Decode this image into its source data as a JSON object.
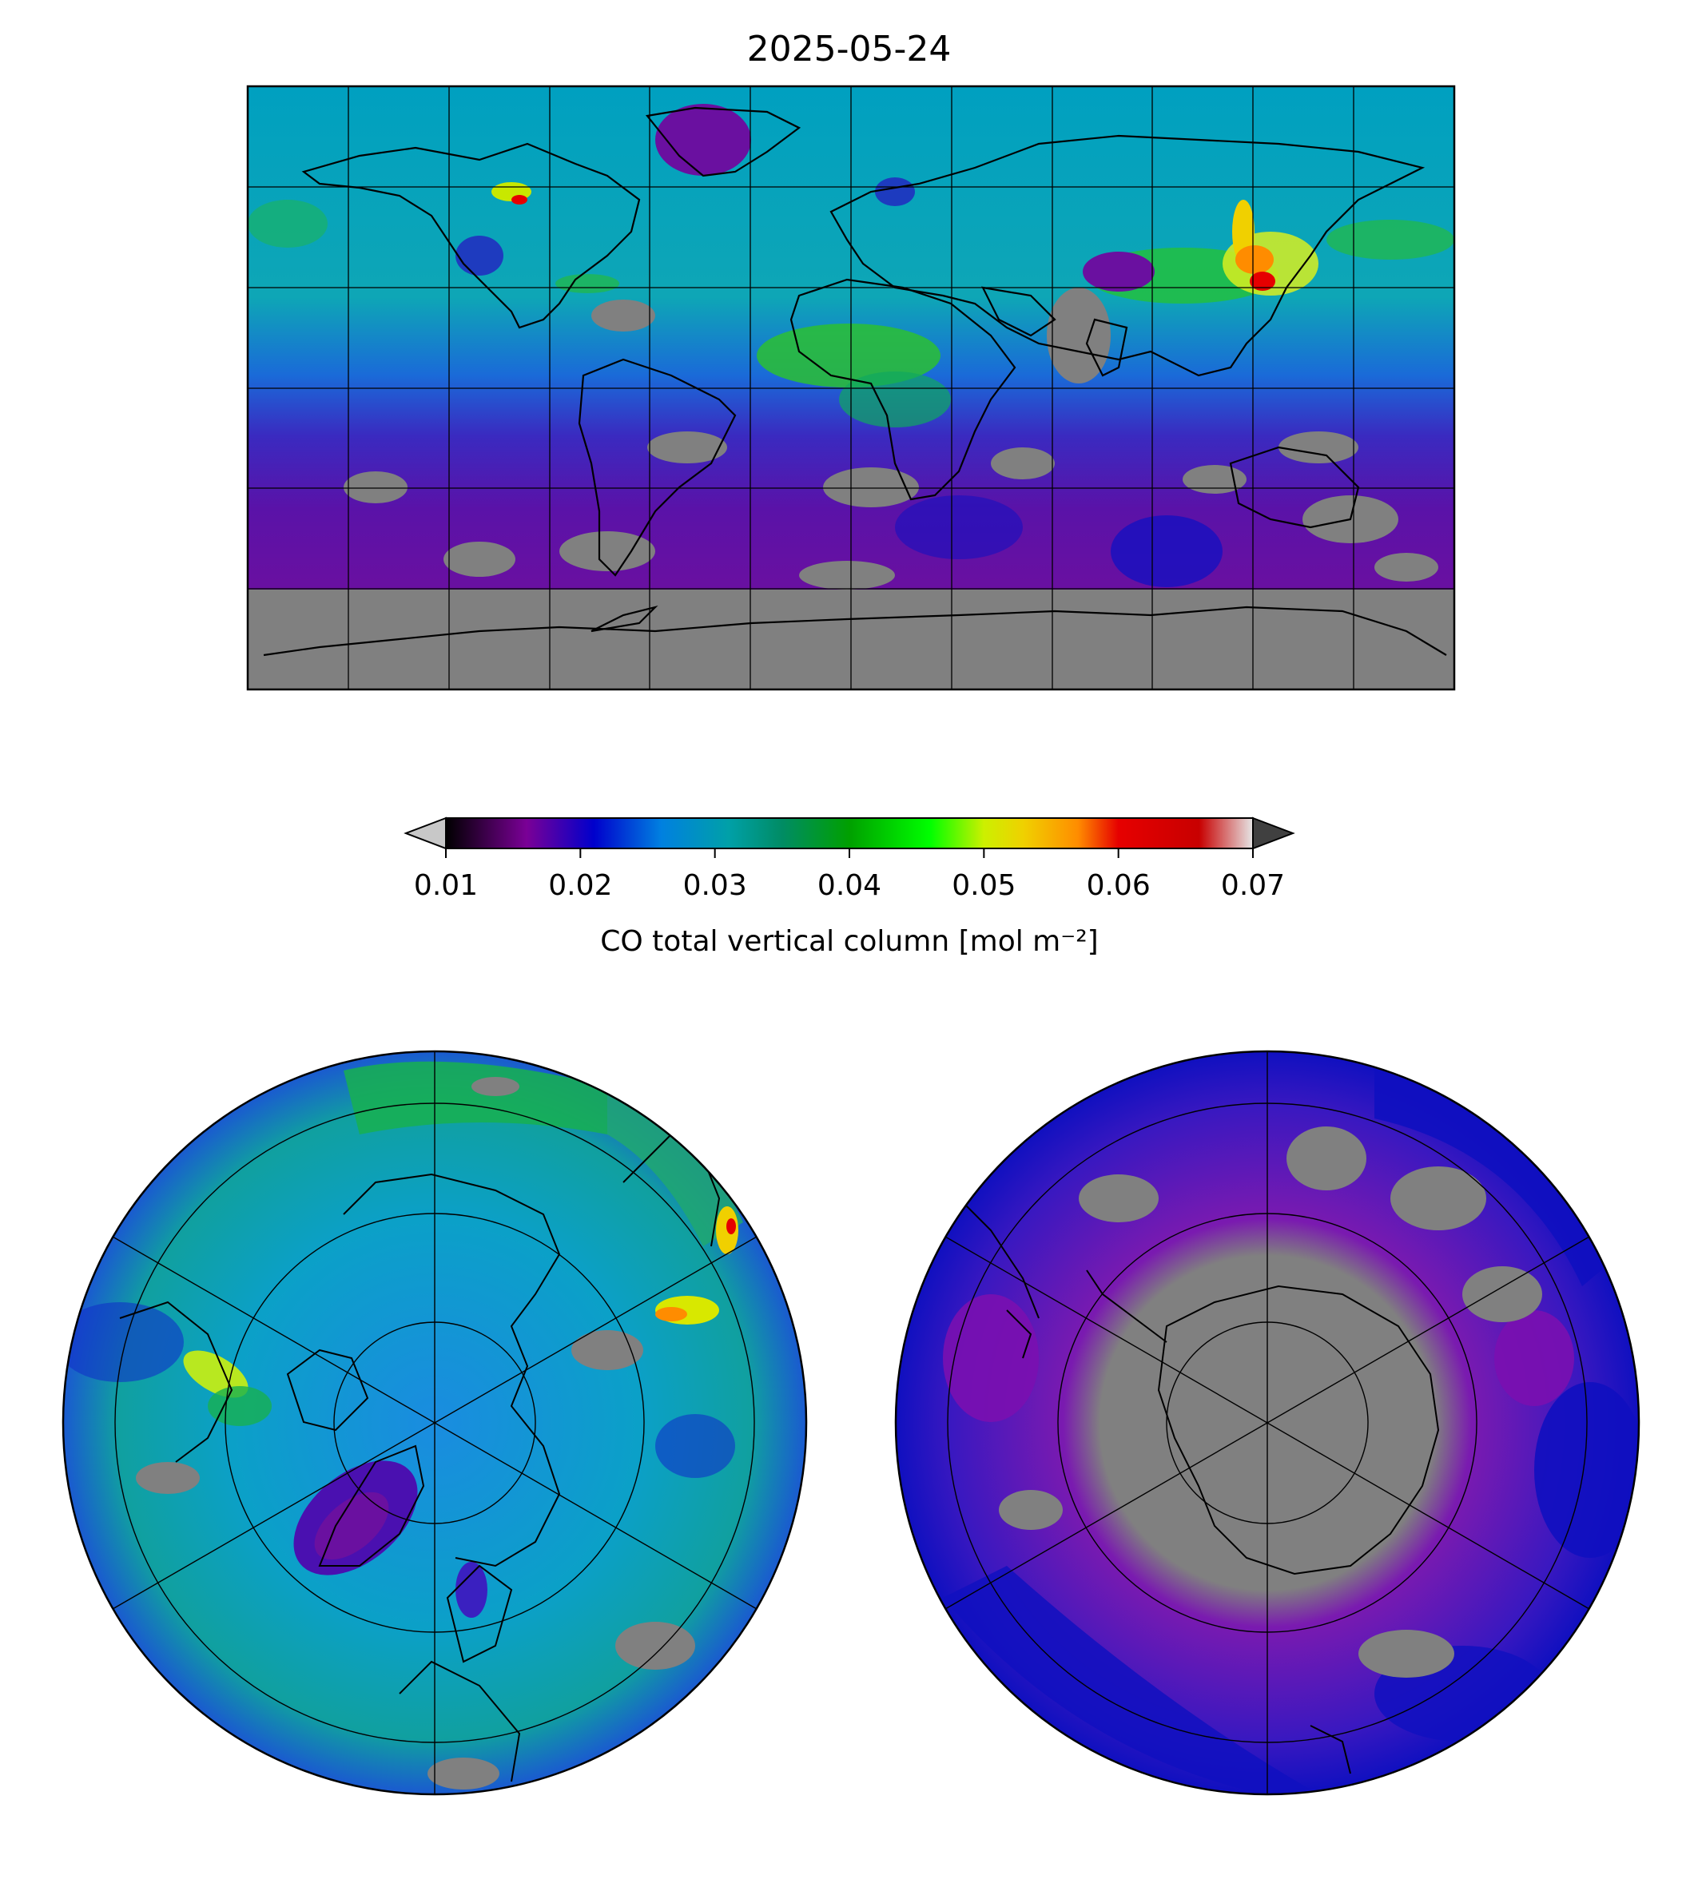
{
  "title": "2025-05-24",
  "colorbar": {
    "label": "CO total vertical column [mol m⁻²]",
    "ticks": [
      "0.01",
      "0.02",
      "0.03",
      "0.04",
      "0.05",
      "0.06",
      "0.07"
    ],
    "range": [
      0.01,
      0.07
    ],
    "extend": "both",
    "under_color": "#c8c8c8",
    "over_color": "#404040",
    "stops": [
      {
        "v": 0.01,
        "c": "#000000"
      },
      {
        "v": 0.016,
        "c": "#7a0096"
      },
      {
        "v": 0.021,
        "c": "#0000cc"
      },
      {
        "v": 0.026,
        "c": "#0080e0"
      },
      {
        "v": 0.031,
        "c": "#00a0a8"
      },
      {
        "v": 0.035,
        "c": "#008c64"
      },
      {
        "v": 0.04,
        "c": "#00a000"
      },
      {
        "v": 0.046,
        "c": "#00ff00"
      },
      {
        "v": 0.05,
        "c": "#ccf000"
      },
      {
        "v": 0.053,
        "c": "#f0d000"
      },
      {
        "v": 0.057,
        "c": "#ff8c00"
      },
      {
        "v": 0.06,
        "c": "#e60000"
      },
      {
        "v": 0.066,
        "c": "#c80000"
      },
      {
        "v": 0.07,
        "c": "#e6e6e6"
      }
    ]
  },
  "maps": {
    "missing_color": "#808080",
    "global": {
      "projection": "equirectangular",
      "gridlines": "every 30°"
    },
    "north": {
      "projection": "north polar stereographic",
      "background": "#00a0c8"
    },
    "south": {
      "projection": "south polar stereographic",
      "background": "#6a1aa0"
    }
  }
}
